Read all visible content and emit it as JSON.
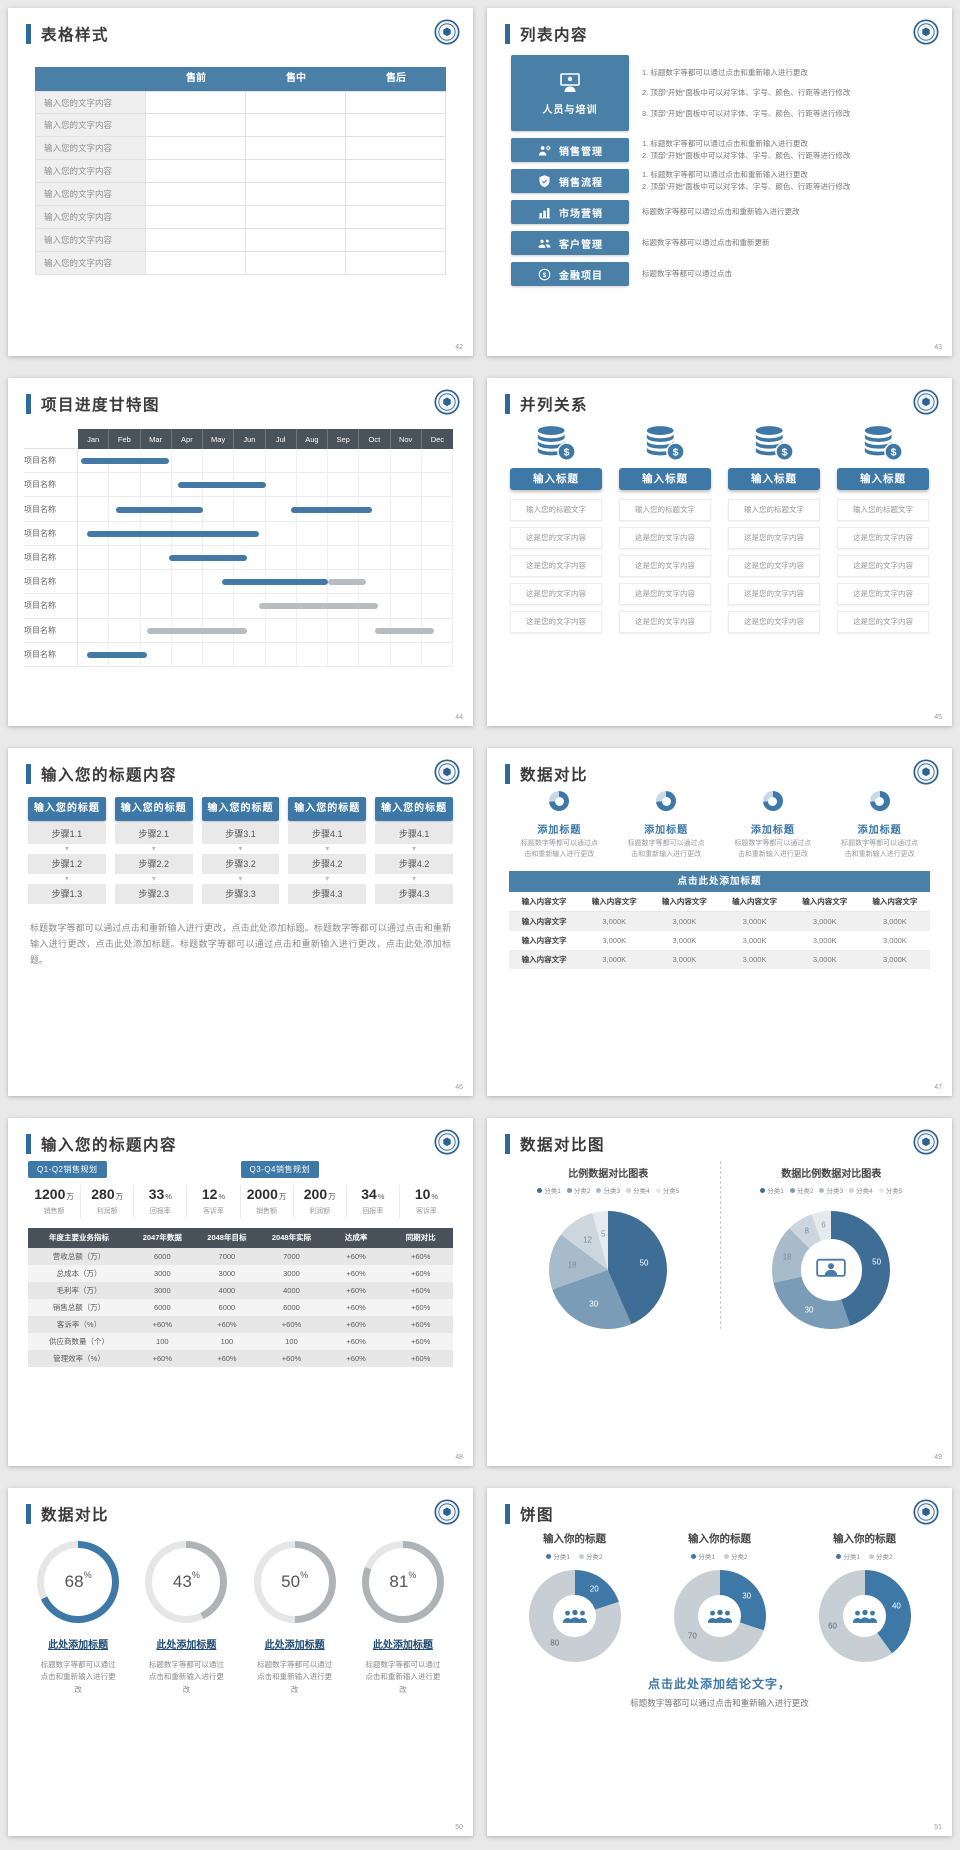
{
  "colors": {
    "background": "#e9e9e9",
    "accent": "#3e78a6",
    "accent_dark": "#2e6b9a",
    "table_header": "#4a80a8",
    "gantt_header": "#4a525c",
    "bar_blue": "#4479a5",
    "bar_gray": "#b7bcc0",
    "gauge_gray": "#aeb3b7",
    "gauge_track": "#e6e6e6",
    "palettes": {
      "pie5": [
        "#3e6e96",
        "#7b9cb6",
        "#a7bbca",
        "#ccd6de",
        "#e5eaee"
      ],
      "pie2": [
        "#3e78a6",
        "#c7ced4"
      ]
    }
  },
  "slides": {
    "s42": {
      "title": "表格样式",
      "page": "42",
      "table": {
        "headers": [
          "售前",
          "售中",
          "售后"
        ],
        "rows": [
          "输入您的文字内容",
          "输入您的文字内容",
          "输入您的文字内容",
          "输入您的文字内容",
          "输入您的文字内容",
          "输入您的文字内容",
          "输入您的文字内容",
          "输入您的文字内容"
        ]
      }
    },
    "s43": {
      "title": "列表内容",
      "page": "43",
      "items": [
        {
          "label": "人员与培训",
          "lines": [
            "1.  标题数字等都可以通过点击和重新输入进行更改",
            "2.  顶部“开始”面板中可以对字体、字号、颜色、行距等进行修改",
            "3.  顶部“开始”面板中可以对字体、字号、颜色、行距等进行修改"
          ]
        },
        {
          "label": "销售管理",
          "lines": [
            "1.  标题数字等都可以通过点击和重新输入进行更改",
            "2.  顶部“开始”面板中可以对字体、字号、颜色、行距等进行修改"
          ]
        },
        {
          "label": "销售流程",
          "lines": [
            "1.  标题数字等都可以通过点击和重新输入进行更改",
            "2.  顶部“开始”面板中可以对字体、字号、颜色、行距等进行修改"
          ]
        },
        {
          "label": "市场营销",
          "lines": [
            "标题数字等都可以通过点击和重新输入进行更改"
          ]
        },
        {
          "label": "客户管理",
          "lines": [
            "标题数字等都可以通过点击和重新更新"
          ]
        },
        {
          "label": "金融项目",
          "lines": [
            "标题数字等都可以通过点击"
          ]
        }
      ]
    },
    "s44": {
      "title": "项目进度甘特图",
      "page": "44",
      "months": [
        "Jan",
        "Feb",
        "Mar",
        "Apr",
        "May",
        "Jun",
        "Jul",
        "Aug",
        "Sep",
        "Oct",
        "Nov",
        "Dec"
      ],
      "rows": [
        "项目名称",
        "项目名称",
        "项目名称",
        "项目名称",
        "项目名称",
        "项目名称",
        "项目名称",
        "项目名称",
        "项目名称"
      ],
      "bars": [
        {
          "row": 0,
          "start": 0.1,
          "end": 2.9,
          "color": "blue"
        },
        {
          "row": 1,
          "start": 3.2,
          "end": 6.0,
          "color": "blue"
        },
        {
          "row": 2,
          "start": 1.2,
          "end": 4.0,
          "color": "blue"
        },
        {
          "row": 2,
          "start": 6.8,
          "end": 9.4,
          "color": "blue"
        },
        {
          "row": 3,
          "start": 0.3,
          "end": 5.8,
          "color": "blue"
        },
        {
          "row": 4,
          "start": 2.9,
          "end": 5.4,
          "color": "blue"
        },
        {
          "row": 5,
          "start": 4.6,
          "end": 8.0,
          "color": "blue"
        },
        {
          "row": 5,
          "start": 8.0,
          "end": 9.2,
          "color": "gray"
        },
        {
          "row": 6,
          "start": 5.8,
          "end": 9.6,
          "color": "gray"
        },
        {
          "row": 7,
          "start": 2.2,
          "end": 5.4,
          "color": "gray"
        },
        {
          "row": 7,
          "start": 9.5,
          "end": 11.4,
          "color": "gray"
        },
        {
          "row": 8,
          "start": 0.3,
          "end": 2.2,
          "color": "blue"
        }
      ]
    },
    "s45": {
      "title": "并列关系",
      "page": "45",
      "button_label": "输入标题",
      "columns": [
        {
          "items": [
            "输入您的标题文字",
            "这是您的文字内容",
            "这是您的文字内容",
            "这是您的文字内容",
            "这是您的文字内容"
          ]
        },
        {
          "items": [
            "输入您的标题文字",
            "这是您的文字内容",
            "这是您的文字内容",
            "这是您的文字内容",
            "这是您的文字内容"
          ]
        },
        {
          "items": [
            "输入您的标题文字",
            "这是您的文字内容",
            "这是您的文字内容",
            "这是您的文字内容",
            "这是您的文字内容"
          ]
        },
        {
          "items": [
            "输入您的标题文字",
            "这是您的文字内容",
            "这是您的文字内容",
            "这是您的文字内容",
            "这是您的文字内容"
          ]
        }
      ]
    },
    "s46": {
      "title": "输入您的标题内容",
      "page": "46",
      "header_label": "输入您的标题",
      "columns": [
        {
          "steps": [
            "步骤1.1",
            "步骤1.2",
            "步骤1.3"
          ]
        },
        {
          "steps": [
            "步骤2.1",
            "步骤2.2",
            "步骤2.3"
          ]
        },
        {
          "steps": [
            "步骤3.1",
            "步骤3.2",
            "步骤3.3"
          ]
        },
        {
          "steps": [
            "步骤4.1",
            "步骤4.2",
            "步骤4.3"
          ]
        },
        {
          "steps": [
            "步骤4.1",
            "步骤4.2",
            "步骤4.3"
          ]
        }
      ],
      "paragraph": "标题数字等都可以通过点击和重新输入进行更改，点击此处添加标题。标题数字等都可以通过点击和重新输入进行更改，点击此处添加标题。标题数字等都可以通过点击和重新输入进行更改，点击此处添加标题。"
    },
    "s47": {
      "title": "数据对比",
      "page": "47",
      "features": [
        {
          "title": "添加标题",
          "desc": "标题数字等都可以通过点击和重新输入进行更改"
        },
        {
          "title": "添加标题",
          "desc": "标题数字等都可以通过点击和重新输入进行更改"
        },
        {
          "title": "添加标题",
          "desc": "标题数字等都可以通过点击和重新输入进行更改"
        },
        {
          "title": "添加标题",
          "desc": "标题数字等都可以通过点击和重新输入进行更改"
        }
      ],
      "table": {
        "header": "点击此处添加标题",
        "col_header": "输入内容文字",
        "rows": [
          [
            "输入内容文字",
            "3,000K",
            "3,000K",
            "3,000K",
            "3,000K",
            "3,000K"
          ],
          [
            "输入内容文字",
            "3,000K",
            "3,000K",
            "3,000K",
            "3,000K",
            "3,000K"
          ],
          [
            "输入内容文字",
            "3,000K",
            "3,000K",
            "3,000K",
            "3,000K",
            "3,000K"
          ]
        ]
      }
    },
    "s48": {
      "title": "输入您的标题内容",
      "page": "48",
      "tags": [
        "Q1-Q2销售规划",
        "Q3-Q4销售规划"
      ],
      "kpis": [
        {
          "value": "1200",
          "unit": "万",
          "label": "销售额"
        },
        {
          "value": "280",
          "unit": "万",
          "label": "利润额"
        },
        {
          "value": "33",
          "unit": "%",
          "label": "回报率"
        },
        {
          "value": "12",
          "unit": "%",
          "label": "客诉率"
        },
        {
          "value": "2000",
          "unit": "万",
          "label": "销售额"
        },
        {
          "value": "200",
          "unit": "万",
          "label": "利润额"
        },
        {
          "value": "34",
          "unit": "%",
          "label": "回报率"
        },
        {
          "value": "10",
          "unit": "%",
          "label": "客诉率"
        }
      ],
      "table": {
        "headers": [
          "年度主要业务指标",
          "2047年数据",
          "2048年目标",
          "2048年实际",
          "达成率",
          "同期对比"
        ],
        "rows": [
          [
            "营收总额（万）",
            "6000",
            "7000",
            "7000",
            "+60%",
            "+60%"
          ],
          [
            "总成本（万）",
            "3000",
            "3000",
            "3000",
            "+60%",
            "+60%"
          ],
          [
            "毛利率（万）",
            "3000",
            "4000",
            "4000",
            "+60%",
            "+60%"
          ],
          [
            "销售总额（万）",
            "6000",
            "6000",
            "6000",
            "+60%",
            "+60%"
          ],
          [
            "客诉率（%）",
            "+60%",
            "+60%",
            "+60%",
            "+60%",
            "+60%"
          ],
          [
            "供应商数量（个）",
            "100",
            "100",
            "100",
            "+60%",
            "+60%"
          ],
          [
            "管理效率（%）",
            "+60%",
            "+60%",
            "+60%",
            "+60%",
            "+60%"
          ]
        ]
      }
    },
    "s49": {
      "title": "数据对比图",
      "page": "49",
      "charts": [
        {
          "type": "pie",
          "chart_title": "比例数据对比图表",
          "legend": [
            "分类1",
            "分类2",
            "分类3",
            "分类4",
            "分类5"
          ],
          "values": [
            50,
            30,
            18,
            12,
            5
          ]
        },
        {
          "type": "donut",
          "chart_title": "数据比例数据对比图表",
          "legend": [
            "分类1",
            "分类2",
            "分类3",
            "分类4",
            "分类5"
          ],
          "values": [
            50,
            30,
            18,
            8,
            6
          ]
        }
      ]
    },
    "s50": {
      "title": "数据对比",
      "page": "50",
      "percent_sign": "%",
      "gauges": [
        {
          "percent": 68,
          "accent": true,
          "label": "此处添加标题",
          "desc": "标题数字等都可以通过点击和重新输入进行更改"
        },
        {
          "percent": 43,
          "accent": false,
          "label": "此处添加标题",
          "desc": "标题数字等都可以通过点击和重新输入进行更改"
        },
        {
          "percent": 50,
          "accent": false,
          "label": "此处添加标题",
          "desc": "标题数字等都可以通过点击和重新输入进行更改"
        },
        {
          "percent": 81,
          "accent": false,
          "label": "此处添加标题",
          "desc": "标题数字等都可以通过点击和重新输入进行更改"
        }
      ]
    },
    "s51": {
      "title": "饼图",
      "page": "51",
      "charts": [
        {
          "header": "输入你的标题",
          "legend": [
            "分类1",
            "分类2"
          ],
          "values": [
            20,
            80
          ]
        },
        {
          "header": "输入你的标题",
          "legend": [
            "分类1",
            "分类2"
          ],
          "values": [
            30,
            70
          ]
        },
        {
          "header": "输入你的标题",
          "legend": [
            "分类1",
            "分类2"
          ],
          "values": [
            40,
            60
          ]
        }
      ],
      "conclusion_title": "点击此处添加结论文字，",
      "conclusion_desc": "标题数字等都可以通过点击和重新输入进行更改"
    }
  }
}
